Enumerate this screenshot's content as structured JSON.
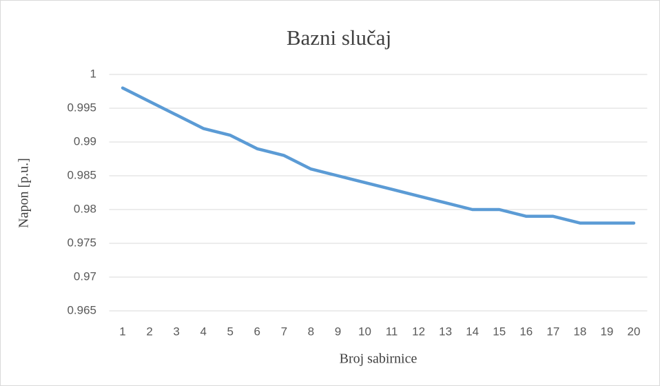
{
  "chart_data": {
    "type": "line",
    "title": "Bazni slučaj",
    "x_label": "Broj sabirnice",
    "y_label": "Napon [p.u.]",
    "categories": [
      1,
      2,
      3,
      4,
      5,
      6,
      7,
      8,
      9,
      10,
      11,
      12,
      13,
      14,
      15,
      16,
      17,
      18,
      19,
      20
    ],
    "values": [
      0.998,
      0.996,
      0.994,
      0.992,
      0.991,
      0.989,
      0.988,
      0.986,
      0.985,
      0.984,
      0.983,
      0.982,
      0.981,
      0.98,
      0.98,
      0.979,
      0.979,
      0.978,
      0.978,
      0.978
    ],
    "color": "#5b9bd5",
    "ylim": [
      0.965,
      1
    ],
    "yticks": [
      0.965,
      0.97,
      0.975,
      0.98,
      0.985,
      0.99,
      0.995,
      1
    ],
    "grid": true
  }
}
